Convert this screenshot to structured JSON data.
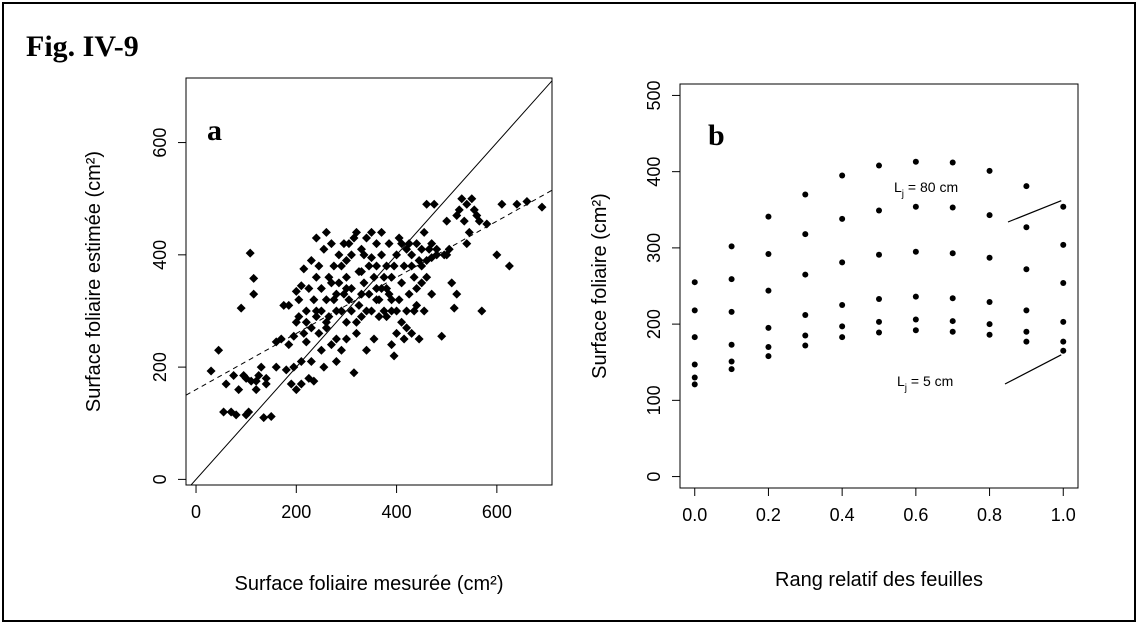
{
  "figure": {
    "title": "Fig. IV-9"
  },
  "chart_data": [
    {
      "type": "scatter",
      "panel_label": "a",
      "xlabel": "Surface foliaire mesurée (cm²)",
      "ylabel": "Surface foliaire estimée (cm²)",
      "xlim": [
        -20,
        710
      ],
      "ylim": [
        -10,
        715
      ],
      "xticks": [
        0,
        200,
        400,
        600
      ],
      "yticks": [
        0,
        200,
        400,
        600
      ],
      "grid": false,
      "reference_lines": [
        {
          "style": "solid",
          "kind": "1:1",
          "points": [
            [
              -20,
              -20
            ],
            [
              710,
              710
            ]
          ]
        },
        {
          "style": "dashed",
          "kind": "regression",
          "points": [
            [
              -20,
              150
            ],
            [
              710,
              515
            ]
          ]
        }
      ],
      "points": [
        [
          30,
          193
        ],
        [
          45,
          230
        ],
        [
          55,
          120
        ],
        [
          60,
          170
        ],
        [
          70,
          120
        ],
        [
          75,
          185
        ],
        [
          80,
          115
        ],
        [
          85,
          160
        ],
        [
          90,
          305
        ],
        [
          95,
          185
        ],
        [
          100,
          180
        ],
        [
          100,
          115
        ],
        [
          105,
          120
        ],
        [
          108,
          403
        ],
        [
          110,
          175
        ],
        [
          115,
          358
        ],
        [
          115,
          330
        ],
        [
          120,
          175
        ],
        [
          125,
          185
        ],
        [
          130,
          200
        ],
        [
          135,
          110
        ],
        [
          140,
          180
        ],
        [
          150,
          112
        ],
        [
          160,
          245
        ],
        [
          175,
          310
        ],
        [
          180,
          195
        ],
        [
          185,
          310
        ],
        [
          185,
          240
        ],
        [
          190,
          170
        ],
        [
          195,
          255
        ],
        [
          195,
          200
        ],
        [
          200,
          160
        ],
        [
          200,
          335
        ],
        [
          205,
          290
        ],
        [
          205,
          320
        ],
        [
          210,
          170
        ],
        [
          210,
          345
        ],
        [
          210,
          210
        ],
        [
          215,
          260
        ],
        [
          215,
          375
        ],
        [
          220,
          245
        ],
        [
          220,
          300
        ],
        [
          225,
          340
        ],
        [
          225,
          180
        ],
        [
          230,
          270
        ],
        [
          230,
          210
        ],
        [
          235,
          320
        ],
        [
          235,
          175
        ],
        [
          240,
          290
        ],
        [
          240,
          360
        ],
        [
          245,
          260
        ],
        [
          245,
          380
        ],
        [
          250,
          300
        ],
        [
          250,
          230
        ],
        [
          250,
          340
        ],
        [
          255,
          410
        ],
        [
          255,
          200
        ],
        [
          260,
          270
        ],
        [
          260,
          440
        ],
        [
          265,
          360
        ],
        [
          265,
          290
        ],
        [
          270,
          240
        ],
        [
          270,
          420
        ],
        [
          275,
          320
        ],
        [
          275,
          380
        ],
        [
          280,
          300
        ],
        [
          280,
          250
        ],
        [
          285,
          350
        ],
        [
          285,
          400
        ],
        [
          290,
          230
        ],
        [
          290,
          300
        ],
        [
          295,
          420
        ],
        [
          295,
          330
        ],
        [
          300,
          280
        ],
        [
          300,
          360
        ],
        [
          300,
          390
        ],
        [
          305,
          320
        ],
        [
          305,
          420
        ],
        [
          310,
          340
        ],
        [
          310,
          300
        ],
        [
          315,
          430
        ],
        [
          315,
          190
        ],
        [
          320,
          440
        ],
        [
          320,
          260
        ],
        [
          325,
          370
        ],
        [
          325,
          310
        ],
        [
          330,
          330
        ],
        [
          330,
          290
        ],
        [
          335,
          400
        ],
        [
          335,
          350
        ],
        [
          340,
          300
        ],
        [
          340,
          430
        ],
        [
          345,
          380
        ],
        [
          345,
          330
        ],
        [
          350,
          440
        ],
        [
          350,
          300
        ],
        [
          355,
          250
        ],
        [
          355,
          360
        ],
        [
          360,
          420
        ],
        [
          360,
          380
        ],
        [
          365,
          320
        ],
        [
          365,
          290
        ],
        [
          370,
          340
        ],
        [
          370,
          400
        ],
        [
          375,
          360
        ],
        [
          375,
          300
        ],
        [
          380,
          290
        ],
        [
          380,
          380
        ],
        [
          385,
          330
        ],
        [
          385,
          420
        ],
        [
          390,
          300
        ],
        [
          390,
          240
        ],
        [
          395,
          220
        ],
        [
          395,
          380
        ],
        [
          400,
          260
        ],
        [
          400,
          400
        ],
        [
          405,
          320
        ],
        [
          405,
          430
        ],
        [
          410,
          350
        ],
        [
          410,
          280
        ],
        [
          415,
          380
        ],
        [
          415,
          250
        ],
        [
          420,
          410
        ],
        [
          420,
          300
        ],
        [
          425,
          330
        ],
        [
          425,
          420
        ],
        [
          430,
          260
        ],
        [
          430,
          400
        ],
        [
          435,
          360
        ],
        [
          435,
          300
        ],
        [
          440,
          420
        ],
        [
          440,
          340
        ],
        [
          445,
          390
        ],
        [
          445,
          250
        ],
        [
          450,
          380
        ],
        [
          450,
          410
        ],
        [
          455,
          300
        ],
        [
          455,
          440
        ],
        [
          460,
          490
        ],
        [
          460,
          360
        ],
        [
          465,
          410
        ],
        [
          470,
          395
        ],
        [
          470,
          420
        ],
        [
          475,
          490
        ],
        [
          480,
          410
        ],
        [
          490,
          255
        ],
        [
          495,
          400
        ],
        [
          500,
          460
        ],
        [
          505,
          410
        ],
        [
          510,
          350
        ],
        [
          515,
          305
        ],
        [
          520,
          470
        ],
        [
          525,
          480
        ],
        [
          530,
          500
        ],
        [
          535,
          460
        ],
        [
          540,
          490
        ],
        [
          545,
          440
        ],
        [
          550,
          500
        ],
        [
          555,
          480
        ],
        [
          560,
          470
        ],
        [
          565,
          460
        ],
        [
          570,
          300
        ],
        [
          580,
          455
        ],
        [
          600,
          400
        ],
        [
          610,
          490
        ],
        [
          625,
          380
        ],
        [
          640,
          490
        ],
        [
          660,
          495
        ],
        [
          690,
          485
        ],
        [
          140,
          170
        ],
        [
          170,
          250
        ],
        [
          230,
          390
        ],
        [
          260,
          320
        ],
        [
          280,
          330
        ],
        [
          290,
          380
        ],
        [
          310,
          400
        ],
        [
          330,
          410
        ],
        [
          350,
          395
        ],
        [
          370,
          440
        ],
        [
          390,
          320
        ],
        [
          410,
          420
        ],
        [
          430,
          380
        ],
        [
          450,
          350
        ],
        [
          470,
          330
        ],
        [
          480,
          400
        ],
        [
          500,
          400
        ],
        [
          520,
          330
        ],
        [
          540,
          420
        ],
        [
          120,
          160
        ],
        [
          160,
          200
        ],
        [
          200,
          280
        ],
        [
          220,
          280
        ],
        [
          240,
          300
        ],
        [
          260,
          280
        ],
        [
          280,
          210
        ],
        [
          300,
          250
        ],
        [
          320,
          280
        ],
        [
          340,
          230
        ],
        [
          360,
          320
        ],
        [
          380,
          340
        ],
        [
          400,
          300
        ],
        [
          420,
          270
        ],
        [
          440,
          310
        ],
        [
          460,
          390
        ],
        [
          240,
          430
        ],
        [
          270,
          350
        ],
        [
          300,
          340
        ],
        [
          330,
          370
        ],
        [
          360,
          340
        ],
        [
          390,
          360
        ]
      ]
    },
    {
      "type": "scatter",
      "panel_label": "b",
      "xlabel": "Rang relatif des feuilles",
      "ylabel": "Surface foliaire (cm²)",
      "xlim": [
        -0.04,
        1.04
      ],
      "ylim": [
        -15,
        515
      ],
      "xticks": [
        0.0,
        0.2,
        0.4,
        0.6,
        0.8,
        1.0
      ],
      "xtick_labels": [
        "0.0",
        "0.2",
        "0.4",
        "0.6",
        "0.8",
        "1.0"
      ],
      "yticks": [
        0,
        100,
        200,
        300,
        400,
        500
      ],
      "grid": false,
      "x": [
        0.0,
        0.1,
        0.2,
        0.3,
        0.4,
        0.5,
        0.6,
        0.7,
        0.8,
        0.9,
        1.0
      ],
      "series": [
        {
          "values": [
            255,
            302,
            341,
            370,
            395,
            408,
            413,
            412,
            401,
            381,
            354
          ]
        },
        {
          "values": [
            218,
            259,
            292,
            318,
            338,
            349,
            354,
            353,
            343,
            327,
            304
          ]
        },
        {
          "values": [
            183,
            216,
            244,
            265,
            281,
            291,
            295,
            293,
            287,
            272,
            254
          ]
        },
        {
          "values": [
            147,
            173,
            195,
            212,
            225,
            233,
            236,
            234,
            229,
            218,
            203
          ]
        },
        {
          "values": [
            130,
            151,
            170,
            185,
            197,
            203,
            206,
            204,
            200,
            190,
            177
          ]
        },
        {
          "values": [
            121,
            141,
            158,
            172,
            183,
            189,
            192,
            190,
            186,
            177,
            165
          ]
        }
      ],
      "annotations": [
        {
          "prefix": "L",
          "sub": "j",
          "suffix": " = 80 cm",
          "points_to": [
            1.0,
            354
          ]
        },
        {
          "prefix": "L",
          "sub": "j",
          "suffix": " = 5 cm",
          "points_to": [
            1.0,
            165
          ]
        }
      ]
    }
  ]
}
